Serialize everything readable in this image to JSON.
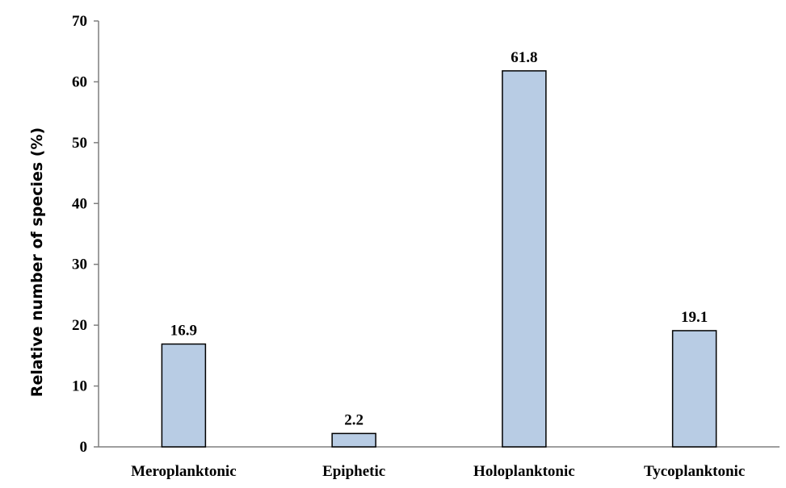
{
  "chart_data": {
    "type": "bar",
    "title": "",
    "xlabel": "",
    "ylabel": "Relative number of species (%)",
    "categories": [
      "Meroplanktonic",
      "Epiphetic",
      "Holoplanktonic",
      "Tycoplanktonic"
    ],
    "values": [
      16.9,
      2.2,
      61.8,
      19.1
    ],
    "data_labels": [
      "16.9",
      "2.2",
      "61.8",
      "19.1"
    ],
    "ylim": [
      0,
      70
    ],
    "yticks": [
      0,
      10,
      20,
      30,
      40,
      50,
      60,
      70
    ],
    "grid": false,
    "legend": "none",
    "colors": {
      "bar_fill": "#b8cce4",
      "bar_stroke": "#000000",
      "axis": "#7f7f7f"
    }
  }
}
